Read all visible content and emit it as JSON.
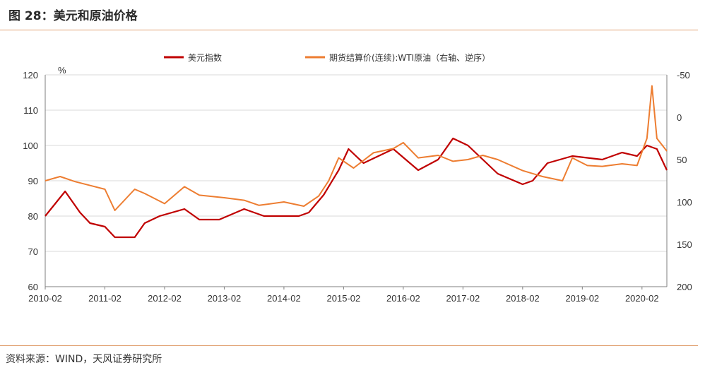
{
  "title": "图 28：美元和原油价格",
  "source": "资料来源：WIND，天风证券研究所",
  "chart_data": {
    "type": "line",
    "ylabel_left": "%",
    "left_axis": {
      "min": 60,
      "max": 120,
      "ticks": [
        "60",
        "70",
        "80",
        "90",
        "100",
        "110",
        "120"
      ]
    },
    "right_axis": {
      "min": -50,
      "max": 200,
      "reversed": true,
      "ticks": [
        "-50",
        "0",
        "50",
        "100",
        "150",
        "200"
      ]
    },
    "x_ticks": [
      "2010-02",
      "2011-02",
      "2012-02",
      "2013-02",
      "2014-02",
      "2015-02",
      "2016-02",
      "2017-02",
      "2018-02",
      "2019-02",
      "2020-02"
    ],
    "x_range": [
      "2010-02",
      "2020-07"
    ],
    "grid": "horizontal",
    "legend_position": "top",
    "series": [
      {
        "name": "美元指数",
        "axis": "left",
        "color": "#c00000",
        "points": [
          [
            "2010-02",
            80
          ],
          [
            "2010-06",
            87
          ],
          [
            "2010-09",
            81
          ],
          [
            "2010-11",
            78
          ],
          [
            "2011-02",
            77
          ],
          [
            "2011-04",
            74
          ],
          [
            "2011-08",
            74
          ],
          [
            "2011-10",
            78
          ],
          [
            "2012-01",
            80
          ],
          [
            "2012-06",
            82
          ],
          [
            "2012-09",
            79
          ],
          [
            "2013-01",
            79
          ],
          [
            "2013-06",
            82
          ],
          [
            "2013-10",
            80
          ],
          [
            "2014-02",
            80
          ],
          [
            "2014-05",
            80
          ],
          [
            "2014-07",
            81
          ],
          [
            "2014-10",
            86
          ],
          [
            "2015-01",
            93
          ],
          [
            "2015-03",
            99
          ],
          [
            "2015-06",
            95
          ],
          [
            "2015-12",
            99
          ],
          [
            "2016-05",
            93
          ],
          [
            "2016-09",
            96
          ],
          [
            "2016-12",
            102
          ],
          [
            "2017-03",
            100
          ],
          [
            "2017-06",
            96
          ],
          [
            "2017-09",
            92
          ],
          [
            "2018-02",
            89
          ],
          [
            "2018-04",
            90
          ],
          [
            "2018-07",
            95
          ],
          [
            "2018-12",
            97
          ],
          [
            "2019-06",
            96
          ],
          [
            "2019-10",
            98
          ],
          [
            "2020-01",
            97
          ],
          [
            "2020-03",
            100
          ],
          [
            "2020-05",
            99
          ],
          [
            "2020-07",
            93
          ]
        ]
      },
      {
        "name": "期货结算价(连续):WTI原油（右轴、逆序）",
        "axis": "right",
        "color": "#ed7d31",
        "points": [
          [
            "2010-02",
            75
          ],
          [
            "2010-05",
            70
          ],
          [
            "2010-08",
            76
          ],
          [
            "2011-02",
            85
          ],
          [
            "2011-04",
            110
          ],
          [
            "2011-08",
            85
          ],
          [
            "2011-10",
            90
          ],
          [
            "2012-02",
            102
          ],
          [
            "2012-06",
            82
          ],
          [
            "2012-09",
            92
          ],
          [
            "2013-02",
            95
          ],
          [
            "2013-06",
            98
          ],
          [
            "2013-09",
            104
          ],
          [
            "2014-02",
            100
          ],
          [
            "2014-06",
            105
          ],
          [
            "2014-09",
            93
          ],
          [
            "2014-11",
            75
          ],
          [
            "2015-01",
            48
          ],
          [
            "2015-04",
            60
          ],
          [
            "2015-08",
            42
          ],
          [
            "2015-12",
            37
          ],
          [
            "2016-02",
            30
          ],
          [
            "2016-05",
            48
          ],
          [
            "2016-09",
            45
          ],
          [
            "2016-12",
            52
          ],
          [
            "2017-03",
            50
          ],
          [
            "2017-06",
            45
          ],
          [
            "2017-09",
            50
          ],
          [
            "2018-02",
            63
          ],
          [
            "2018-06",
            70
          ],
          [
            "2018-10",
            75
          ],
          [
            "2018-12",
            48
          ],
          [
            "2019-03",
            57
          ],
          [
            "2019-06",
            58
          ],
          [
            "2019-10",
            55
          ],
          [
            "2020-01",
            57
          ],
          [
            "2020-03",
            25
          ],
          [
            "2020-04",
            -37
          ],
          [
            "2020-05",
            25
          ],
          [
            "2020-07",
            40
          ]
        ]
      }
    ]
  }
}
